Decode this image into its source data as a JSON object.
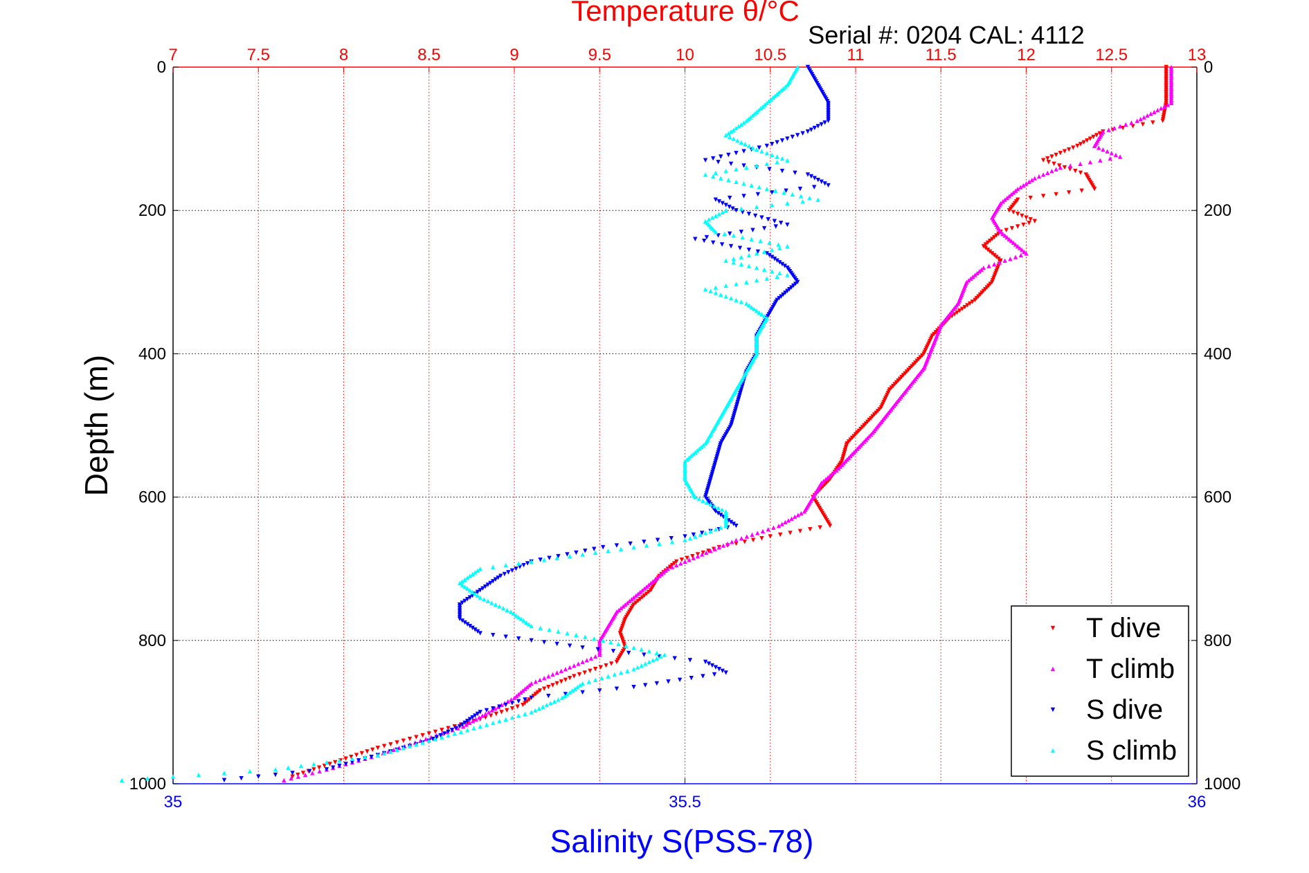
{
  "chart_data": {
    "type": "scatter",
    "title": "Temperature θ/°C",
    "subtitle": "Serial #: 0204  CAL: 4112",
    "xlabel": "Salinity S(PSS-78)",
    "x2label": "Temperature θ/°C",
    "ylabel": "Depth (m)",
    "xlim": [
      35,
      36
    ],
    "x2lim": [
      7,
      13
    ],
    "ylim": [
      1000,
      0
    ],
    "grid": true,
    "legend_position": "bottom-right",
    "colors": {
      "t_axis": "#ff0000",
      "s_axis": "#0000ff",
      "axis_black": "#000000",
      "t_dive": "#ff0000",
      "t_climb": "#ff00ff",
      "s_dive": "#0000ff",
      "s_climb": "#00ffff"
    },
    "x_ticks": [
      "35",
      "35.5",
      "36"
    ],
    "x2_ticks": [
      "7",
      "7.5",
      "8",
      "8.5",
      "9",
      "9.5",
      "10",
      "10.5",
      "11",
      "11.5",
      "12",
      "12.5",
      "13"
    ],
    "y_ticks": [
      "0",
      "200",
      "400",
      "600",
      "800",
      "1000"
    ],
    "series": [
      {
        "name": "T dive",
        "axis": "temperature",
        "marker": "▾",
        "color": "#ff0000",
        "depth": [
          0,
          25,
          50,
          75,
          90,
          110,
          130,
          150,
          170,
          185,
          200,
          215,
          230,
          250,
          270,
          300,
          325,
          350,
          375,
          400,
          425,
          450,
          475,
          500,
          525,
          550,
          575,
          600,
          620,
          640,
          655,
          670,
          690,
          710,
          730,
          750,
          770,
          790,
          810,
          830,
          850,
          870,
          890,
          910,
          930,
          950,
          970,
          990
        ],
        "values": [
          12.82,
          12.82,
          12.82,
          12.8,
          12.45,
          12.3,
          12.1,
          12.35,
          12.4,
          11.95,
          11.9,
          12.05,
          11.85,
          11.75,
          11.85,
          11.8,
          11.7,
          11.55,
          11.45,
          11.4,
          11.3,
          11.2,
          11.15,
          11.05,
          10.95,
          10.92,
          10.85,
          10.75,
          10.8,
          10.85,
          10.5,
          10.2,
          9.95,
          9.85,
          9.8,
          9.7,
          9.65,
          9.62,
          9.65,
          9.6,
          9.35,
          9.15,
          9.05,
          8.8,
          8.5,
          8.2,
          7.95,
          7.7
        ]
      },
      {
        "name": "T climb",
        "axis": "temperature",
        "marker": "▴",
        "color": "#ff00ff",
        "depth": [
          0,
          25,
          50,
          75,
          90,
          110,
          125,
          140,
          155,
          170,
          190,
          210,
          230,
          260,
          280,
          300,
          330,
          360,
          390,
          420,
          450,
          480,
          510,
          540,
          560,
          580,
          600,
          620,
          640,
          660,
          680,
          700,
          720,
          740,
          760,
          780,
          800,
          820,
          840,
          860,
          880,
          900,
          920,
          940,
          960,
          980,
          995
        ],
        "values": [
          12.85,
          12.85,
          12.85,
          12.65,
          12.45,
          12.4,
          12.55,
          12.2,
          12.05,
          11.95,
          11.85,
          11.8,
          11.85,
          12.0,
          11.75,
          11.65,
          11.6,
          11.5,
          11.45,
          11.4,
          11.3,
          11.2,
          11.1,
          10.98,
          10.9,
          10.8,
          10.75,
          10.7,
          10.55,
          10.3,
          10.1,
          9.9,
          9.8,
          9.7,
          9.6,
          9.55,
          9.5,
          9.5,
          9.3,
          9.1,
          9.0,
          8.85,
          8.7,
          8.45,
          8.2,
          7.9,
          7.65
        ]
      },
      {
        "name": "S dive",
        "axis": "salinity",
        "marker": "▾",
        "color": "#0000ff",
        "depth": [
          0,
          25,
          50,
          75,
          90,
          110,
          130,
          150,
          165,
          185,
          200,
          220,
          240,
          260,
          280,
          300,
          325,
          350,
          375,
          400,
          425,
          450,
          475,
          500,
          525,
          550,
          575,
          600,
          620,
          640,
          655,
          670,
          690,
          710,
          730,
          750,
          770,
          790,
          810,
          830,
          845,
          865,
          880,
          900,
          920,
          940,
          960,
          980,
          995
        ],
        "values": [
          35.62,
          35.63,
          35.64,
          35.64,
          35.62,
          35.58,
          35.52,
          35.62,
          35.64,
          35.53,
          35.55,
          35.6,
          35.51,
          35.58,
          35.6,
          35.61,
          35.59,
          35.58,
          35.57,
          35.57,
          35.56,
          35.555,
          35.55,
          35.545,
          35.535,
          35.53,
          35.525,
          35.52,
          35.53,
          35.55,
          35.5,
          35.42,
          35.35,
          35.32,
          35.3,
          35.28,
          35.28,
          35.3,
          35.4,
          35.52,
          35.54,
          35.45,
          35.35,
          35.3,
          35.28,
          35.25,
          35.2,
          35.15,
          35.05
        ]
      },
      {
        "name": "S climb",
        "axis": "salinity",
        "marker": "▴",
        "color": "#00ffff",
        "depth": [
          0,
          25,
          50,
          75,
          95,
          115,
          130,
          150,
          170,
          185,
          200,
          215,
          230,
          250,
          270,
          290,
          310,
          330,
          350,
          375,
          400,
          425,
          450,
          475,
          500,
          525,
          550,
          575,
          600,
          620,
          640,
          660,
          680,
          700,
          720,
          740,
          760,
          780,
          800,
          820,
          840,
          860,
          880,
          900,
          920,
          940,
          960,
          980,
          995
        ],
        "values": [
          35.61,
          35.6,
          35.58,
          35.56,
          35.54,
          35.57,
          35.6,
          35.52,
          35.58,
          35.63,
          35.54,
          35.52,
          35.53,
          35.6,
          35.54,
          35.6,
          35.52,
          35.56,
          35.58,
          35.57,
          35.57,
          35.56,
          35.55,
          35.54,
          35.53,
          35.52,
          35.5,
          35.5,
          35.51,
          35.54,
          35.54,
          35.5,
          35.4,
          35.3,
          35.28,
          35.3,
          35.33,
          35.35,
          35.42,
          35.48,
          35.45,
          35.4,
          35.38,
          35.35,
          35.3,
          35.25,
          35.2,
          35.1,
          34.95
        ]
      }
    ]
  }
}
